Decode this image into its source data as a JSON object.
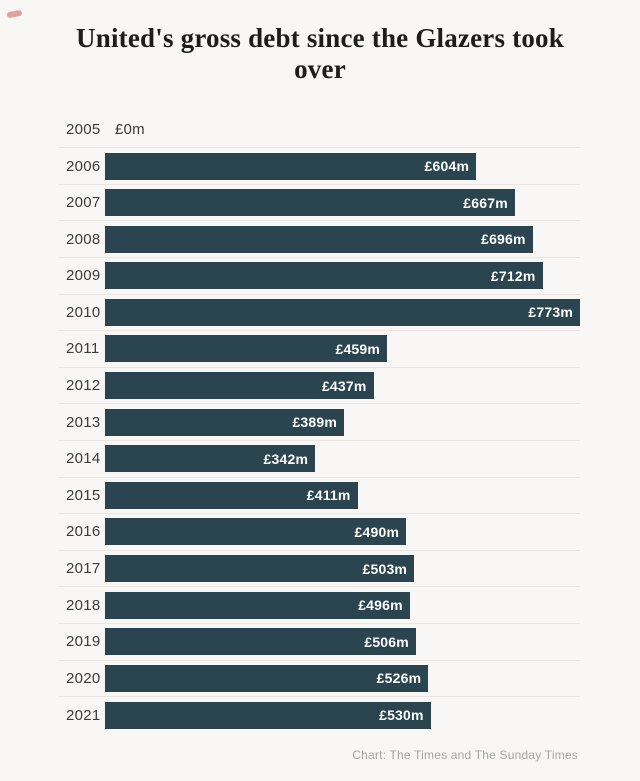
{
  "page": {
    "background_color": "#f8f7f5",
    "accent_bar_color": "#2a4550",
    "separator_color": "#e9e6e1"
  },
  "header": {
    "title": "United's gross debt since the Glazers took over"
  },
  "footer": {
    "source_credit": "Chart: The Times and The Sunday Times"
  },
  "chart_data": {
    "type": "bar",
    "orientation": "horizontal",
    "title": "United's gross debt since the Glazers took over",
    "categories": [
      "2005",
      "2006",
      "2007",
      "2008",
      "2009",
      "2010",
      "2011",
      "2012",
      "2013",
      "2014",
      "2015",
      "2016",
      "2017",
      "2018",
      "2019",
      "2020",
      "2021"
    ],
    "values": [
      0,
      604,
      667,
      696,
      712,
      773,
      459,
      437,
      389,
      342,
      411,
      490,
      503,
      496,
      506,
      526,
      530
    ],
    "labels": [
      "£0m",
      "£604m",
      "£667m",
      "£696m",
      "£712m",
      "£773m",
      "£459m",
      "£437m",
      "£389m",
      "£342m",
      "£411m",
      "£490m",
      "£503m",
      "£496m",
      "£506m",
      "£526m",
      "£530m"
    ],
    "value_unit": "£m",
    "xlim": [
      0,
      773
    ],
    "bar_color": "#2a4550",
    "label_position": "inside-end",
    "label_color_inside": "#ffffff",
    "grid": "horizontal row separators",
    "legend": "none",
    "source": "Chart: The Times and The Sunday Times"
  }
}
